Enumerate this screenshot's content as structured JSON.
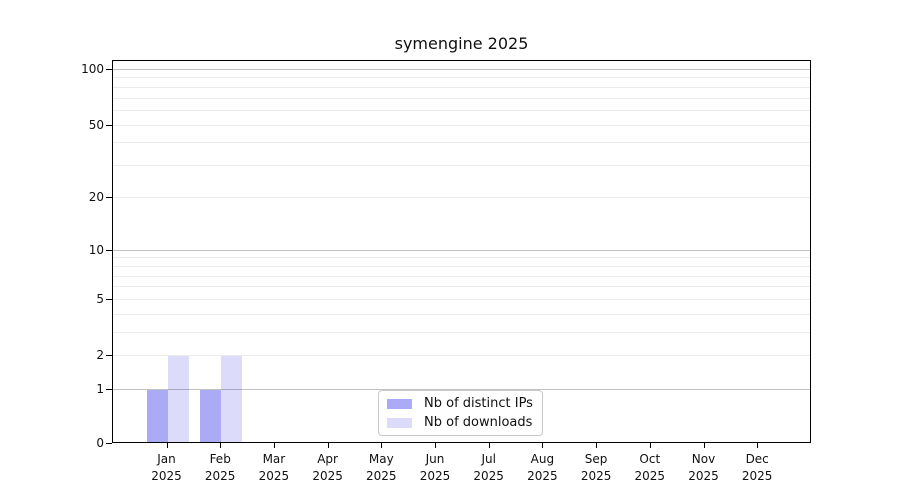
{
  "chart_data": {
    "type": "bar",
    "title": "symengine 2025",
    "categories": [
      "Jan 2025",
      "Feb 2025",
      "Mar 2025",
      "Apr 2025",
      "May 2025",
      "Jun 2025",
      "Jul 2025",
      "Aug 2025",
      "Sep 2025",
      "Oct 2025",
      "Nov 2025",
      "Dec 2025"
    ],
    "series": [
      {
        "name": "Nb of distinct IPs",
        "color": "#aaaaf5",
        "values": [
          1,
          1,
          0,
          0,
          0,
          0,
          0,
          0,
          0,
          0,
          0,
          0
        ]
      },
      {
        "name": "Nb of downloads",
        "color": "#dcdcfa",
        "values": [
          2,
          2,
          0,
          0,
          0,
          0,
          0,
          0,
          0,
          0,
          0,
          0
        ]
      }
    ],
    "yscale": "log1p",
    "ylim": [
      0,
      110
    ],
    "yticks": [
      0,
      1,
      2,
      5,
      10,
      20,
      50,
      100
    ],
    "yticks_minor": [
      3,
      4,
      6,
      7,
      8,
      9,
      30,
      40,
      60,
      70,
      80,
      90
    ],
    "major_grid_values": [
      1,
      10,
      100
    ],
    "grid": "horizontal",
    "legend": {
      "position": "lower-center-inside",
      "entries": [
        "Nb of distinct IPs",
        "Nb of downloads"
      ]
    },
    "colors": {
      "bar_distinct_ips": "#aaaaf5",
      "bar_downloads": "#dcdcfa",
      "axis": "#000000",
      "background": "#ffffff"
    }
  }
}
